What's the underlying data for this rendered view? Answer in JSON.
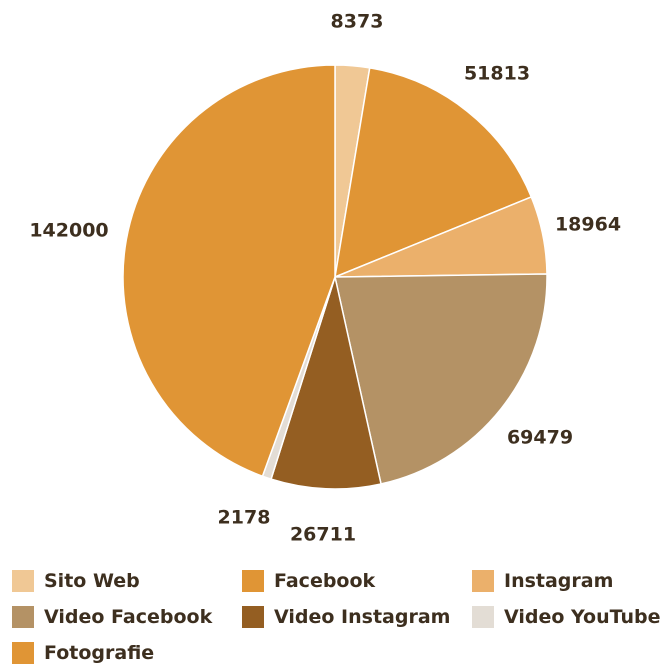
{
  "chart_data": {
    "type": "pie",
    "title": "",
    "start_angle": "top",
    "direction": "clockwise",
    "slices": [
      {
        "name": "Sito Web",
        "value": 8373,
        "color": "#f0c895"
      },
      {
        "name": "Facebook",
        "value": 51813,
        "color": "#e09535"
      },
      {
        "name": "Instagram",
        "value": 18964,
        "color": "#ebb06b"
      },
      {
        "name": "Video Facebook",
        "value": 69479,
        "color": "#b49265"
      },
      {
        "name": "Video Instagram",
        "value": 26711,
        "color": "#945e22"
      },
      {
        "name": "Video YouTube",
        "value": 2178,
        "color": "#e3ddd5"
      },
      {
        "name": "Fotografie",
        "value": 142000,
        "color": "#e09535"
      }
    ],
    "legend": {
      "placement": "bottom",
      "entries": [
        "Sito Web",
        "Facebook",
        "Instagram",
        "Video Facebook",
        "Video Instagram",
        "Video YouTube",
        "Fotografie"
      ]
    }
  }
}
